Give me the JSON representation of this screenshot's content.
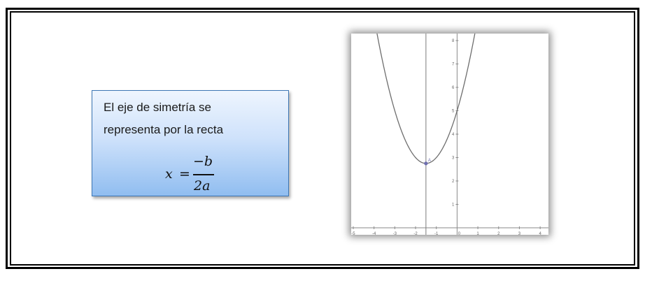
{
  "note": {
    "line1": "El eje de simetría se",
    "line2": "representa por la recta",
    "formula": {
      "lhs": "x",
      "equals": "=",
      "numerator": "−b",
      "denominator": "2a"
    }
  },
  "chart_data": {
    "type": "line",
    "xlim": [
      -5.1,
      4.4
    ],
    "ylim": [
      -0.3,
      8.3
    ],
    "x_ticks": [
      -5,
      -4,
      -3,
      -2,
      -1,
      0,
      1,
      2,
      3,
      4
    ],
    "y_ticks": [
      1,
      2,
      3,
      4,
      5,
      6,
      7,
      8
    ],
    "series": [
      {
        "function": "y = (x + 1.5)^2 + 2.75",
        "color": "#6e6e6e"
      }
    ],
    "axis_of_symmetry": {
      "x": -1.5
    },
    "vertex": {
      "x": -1.5,
      "y": 2.75,
      "label": "A",
      "color": "#6f6fb0"
    }
  }
}
